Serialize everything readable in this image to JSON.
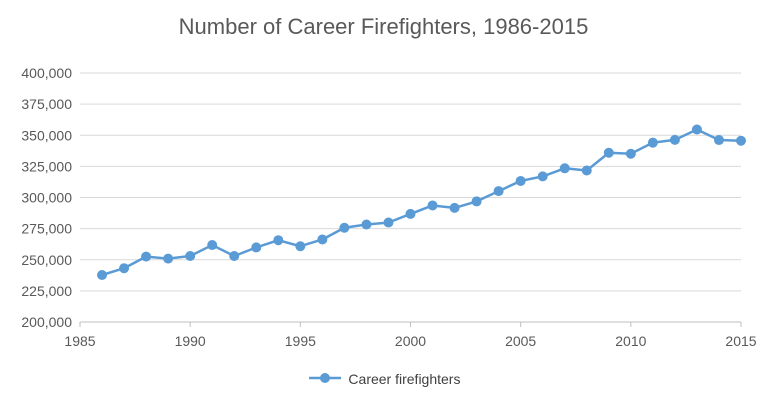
{
  "chart_data": {
    "type": "line",
    "title": "Number of Career Firefighters, 1986-2015",
    "xlabel": "",
    "ylabel": "",
    "xlim": [
      1985,
      2015
    ],
    "ylim": [
      200000,
      400000
    ],
    "x_ticks": [
      1985,
      1990,
      1995,
      2000,
      2005,
      2010,
      2015
    ],
    "x_tick_labels": [
      "1985",
      "1990",
      "1995",
      "2000",
      "2005",
      "2010",
      "2015"
    ],
    "y_ticks": [
      200000,
      225000,
      250000,
      275000,
      300000,
      325000,
      350000,
      375000,
      400000
    ],
    "y_tick_labels": [
      "200,000",
      "225,000",
      "250,000",
      "275,000",
      "300,000",
      "325,000",
      "350,000",
      "375,000",
      "400,000"
    ],
    "grid": "horizontal",
    "legend_position": "bottom",
    "series": [
      {
        "name": "Career firefighters",
        "color": "#5B9BD5",
        "x": [
          1986,
          1987,
          1988,
          1989,
          1990,
          1991,
          1992,
          1993,
          1994,
          1995,
          1996,
          1997,
          1998,
          1999,
          2000,
          2001,
          2002,
          2003,
          2004,
          2005,
          2006,
          2007,
          2008,
          2009,
          2010,
          2011,
          2012,
          2013,
          2014,
          2015
        ],
        "y": [
          237750,
          243200,
          252500,
          250900,
          253000,
          261800,
          253000,
          259900,
          265700,
          260850,
          266300,
          275700,
          278300,
          279900,
          286800,
          293600,
          291650,
          296850,
          305150,
          313300,
          316950,
          323450,
          321700,
          335950,
          335150,
          344050,
          346300,
          354600,
          346150,
          345600
        ]
      }
    ]
  }
}
